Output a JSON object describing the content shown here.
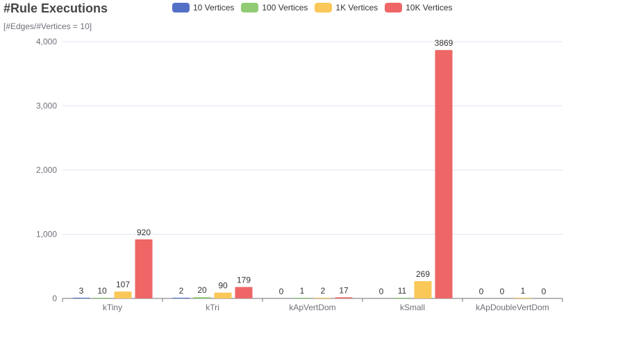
{
  "chart_data": {
    "type": "bar",
    "title": "#Rule Executions",
    "subtitle": "[#Edges/#Vertices = 10]",
    "categories": [
      "kTiny",
      "kTri",
      "kApVertDom",
      "kSmall",
      "kApDoubleVertDom"
    ],
    "series": [
      {
        "name": "10 Vertices",
        "color": "#5470c6",
        "values": [
          3,
          2,
          0,
          0,
          0
        ]
      },
      {
        "name": "100 Vertices",
        "color": "#91cc75",
        "values": [
          10,
          20,
          1,
          11,
          0
        ]
      },
      {
        "name": "1K Vertices",
        "color": "#fac858",
        "values": [
          107,
          90,
          2,
          269,
          1
        ]
      },
      {
        "name": "10K Vertices",
        "color": "#ee6666",
        "values": [
          920,
          179,
          17,
          3869,
          0
        ]
      }
    ],
    "ylim": [
      0,
      4000
    ],
    "yticks": [
      0,
      1000,
      2000,
      3000,
      4000
    ],
    "ytick_labels": [
      "0",
      "1,000",
      "2,000",
      "3,000",
      "4,000"
    ],
    "grid": true,
    "legend_position": "top-center",
    "data_labels": true
  }
}
